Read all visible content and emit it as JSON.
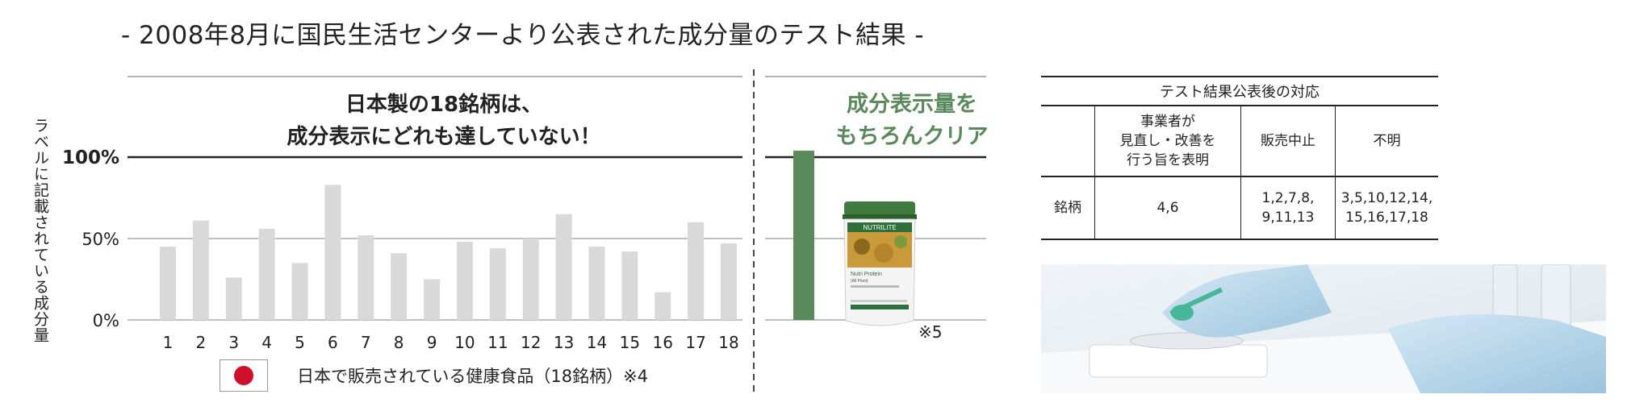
{
  "title": "- 2008年8月に国民生活センターより公表された成分量のテスト結果 -",
  "chart_data": {
    "type": "bar",
    "ylabel": "ラベルに記載されている成分量",
    "yticks": [
      "0%",
      "50%",
      "100%"
    ],
    "ylim": [
      0,
      100
    ],
    "categories": [
      "1",
      "2",
      "3",
      "4",
      "5",
      "6",
      "7",
      "8",
      "9",
      "10",
      "11",
      "12",
      "13",
      "14",
      "15",
      "16",
      "17",
      "18"
    ],
    "values": [
      45,
      61,
      26,
      56,
      35,
      83,
      52,
      41,
      25,
      48,
      44,
      50,
      65,
      45,
      42,
      17,
      60,
      47
    ],
    "bar_color": "#d9d9d9",
    "comparison_bar": {
      "value": 104,
      "color": "#5a8a5a"
    },
    "headline_lines": [
      "日本製の18銘柄は、",
      "成分表示にどれも達していない！"
    ],
    "comparison_lines": [
      "成分表示量を",
      "もちろんクリア"
    ],
    "comparison_note": "※5",
    "legend": "日本で販売されている健康食品（18銘柄）※4",
    "grid": true
  },
  "product": {
    "brand": "NUTRILITE",
    "name": "Nutri Protein",
    "sub": "(All Plant)"
  },
  "response_table": {
    "caption": "テスト結果公表後の対応",
    "headers": [
      "",
      "事業者が\n見直し・改善を\n行う旨を表明",
      "販売中止",
      "不明"
    ],
    "row": [
      "銘柄",
      "4,6",
      "1,2,7,8,\n9,11,13",
      "3,5,10,12,14,\n15,16,17,18"
    ]
  },
  "colors": {
    "accent_green": "#5a8a5a",
    "bar_gray": "#d9d9d9",
    "flag_red": "#d0102a"
  }
}
